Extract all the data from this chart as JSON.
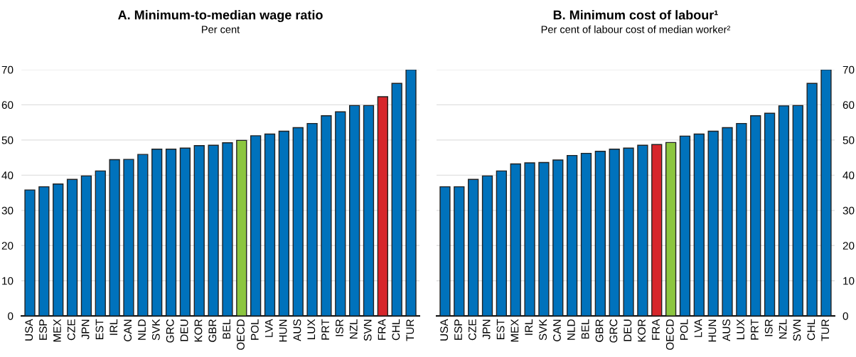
{
  "chart_data": [
    {
      "type": "bar",
      "title": "A. Minimum-to-median wage ratio",
      "subtitle": "Per cent",
      "categories": [
        "USA",
        "ESP",
        "MEX",
        "CZE",
        "JPN",
        "EST",
        "IRL",
        "CAN",
        "NLD",
        "SVK",
        "GRC",
        "DEU",
        "KOR",
        "GBR",
        "BEL",
        "OECD",
        "POL",
        "LVA",
        "HUN",
        "AUS",
        "LUX",
        "PRT",
        "ISR",
        "NZL",
        "SVN",
        "FRA",
        "CHL",
        "TUR"
      ],
      "values": [
        35.8,
        36.7,
        37.5,
        38.8,
        39.8,
        41.2,
        44.4,
        44.5,
        45.9,
        47.4,
        47.4,
        47.7,
        48.4,
        48.5,
        49.2,
        49.9,
        51.2,
        51.7,
        52.5,
        53.5,
        54.7,
        56.9,
        58.0,
        59.8,
        59.8,
        62.3,
        66.1,
        70
      ],
      "colors": [
        "#0072bc",
        "#0072bc",
        "#0072bc",
        "#0072bc",
        "#0072bc",
        "#0072bc",
        "#0072bc",
        "#0072bc",
        "#0072bc",
        "#0072bc",
        "#0072bc",
        "#0072bc",
        "#0072bc",
        "#0072bc",
        "#0072bc",
        "#8cc63f",
        "#0072bc",
        "#0072bc",
        "#0072bc",
        "#0072bc",
        "#0072bc",
        "#0072bc",
        "#0072bc",
        "#0072bc",
        "#0072bc",
        "#d7262b",
        "#0072bc",
        "#0072bc"
      ],
      "ylim": [
        0,
        70
      ],
      "yticks": [
        0,
        10,
        20,
        30,
        40,
        50,
        60,
        70
      ],
      "grid": "y"
    },
    {
      "type": "bar",
      "title": "B. Minimum cost of labour¹",
      "subtitle": "Per cent of labour cost of median worker²",
      "categories": [
        "USA",
        "ESP",
        "CZE",
        "JPN",
        "EST",
        "MEX",
        "IRL",
        "SVK",
        "CAN",
        "NLD",
        "BEL",
        "GBR",
        "GRC",
        "DEU",
        "KOR",
        "FRA",
        "OECD",
        "POL",
        "LVA",
        "HUN",
        "AUS",
        "LUX",
        "PRT",
        "ISR",
        "NZL",
        "SVN",
        "CHL",
        "TUR"
      ],
      "values": [
        36.7,
        36.7,
        38.8,
        39.8,
        41.2,
        43.2,
        43.5,
        43.6,
        44.3,
        45.6,
        46.2,
        46.8,
        47.4,
        47.7,
        48.5,
        48.7,
        49.3,
        51.1,
        51.7,
        52.5,
        53.5,
        54.7,
        56.9,
        57.6,
        59.7,
        59.8,
        66.1,
        70
      ],
      "colors": [
        "#0072bc",
        "#0072bc",
        "#0072bc",
        "#0072bc",
        "#0072bc",
        "#0072bc",
        "#0072bc",
        "#0072bc",
        "#0072bc",
        "#0072bc",
        "#0072bc",
        "#0072bc",
        "#0072bc",
        "#0072bc",
        "#0072bc",
        "#d7262b",
        "#8cc63f",
        "#0072bc",
        "#0072bc",
        "#0072bc",
        "#0072bc",
        "#0072bc",
        "#0072bc",
        "#0072bc",
        "#0072bc",
        "#0072bc",
        "#0072bc",
        "#0072bc"
      ],
      "ylim": [
        0,
        70
      ],
      "yticks": [
        0,
        10,
        20,
        30,
        40,
        50,
        60,
        70
      ],
      "grid": "y"
    }
  ]
}
